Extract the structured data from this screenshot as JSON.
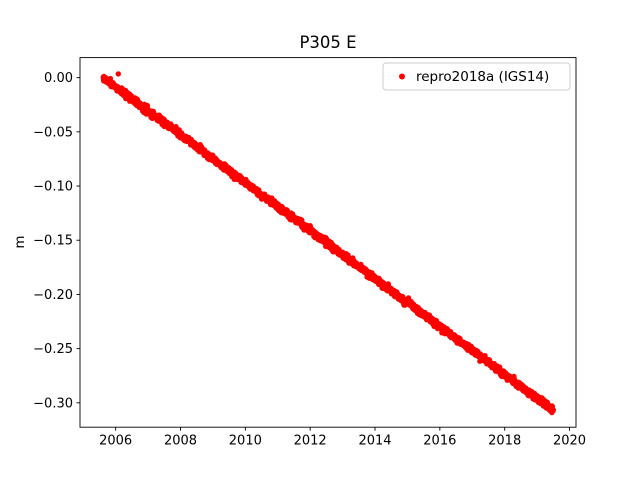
{
  "chart_data": {
    "type": "scatter",
    "title": "P305 E",
    "xlabel": "",
    "ylabel": "m",
    "grid": false,
    "xlim": [
      2004.9,
      2020.2
    ],
    "ylim": [
      -0.3225,
      0.0185
    ],
    "xticks": {
      "values": [
        2006,
        2008,
        2010,
        2012,
        2014,
        2016,
        2018,
        2020
      ],
      "labels": [
        "2006",
        "2008",
        "2010",
        "2012",
        "2014",
        "2016",
        "2018",
        "2020"
      ]
    },
    "yticks": {
      "values": [
        0.0,
        -0.05,
        -0.1,
        -0.15,
        -0.2,
        -0.25,
        -0.3
      ],
      "labels": [
        "0.00",
        "−0.05",
        "−0.10",
        "−0.15",
        "−0.20",
        "−0.25",
        "−0.30"
      ]
    },
    "legend": {
      "position": "upper right",
      "framed": true
    },
    "series": [
      {
        "name": "repro2018a (IGS14)",
        "color": "#ff0000",
        "marker": "point",
        "marker_radius_px": 2.7,
        "trend": {
          "x_start": 2005.62,
          "x_end": 2019.5,
          "y_start": 0.0,
          "y_end": -0.307,
          "noise_sd": 0.0015,
          "n_points": 2300
        },
        "annual_samples": [
          [
            2006.0,
            -0.008
          ],
          [
            2008.0,
            -0.053
          ],
          [
            2010.0,
            -0.097
          ],
          [
            2012.0,
            -0.141
          ],
          [
            2014.0,
            -0.185
          ],
          [
            2016.0,
            -0.23
          ],
          [
            2018.0,
            -0.274
          ],
          [
            2019.5,
            -0.307
          ]
        ],
        "outliers": [
          [
            2006.08,
            0.0035
          ]
        ]
      }
    ]
  },
  "colors": {
    "background": "#ffffff",
    "axis": "#000000",
    "series": "#ff0000",
    "legend_border": "#cccccc",
    "legend_background": "#ffffff"
  }
}
